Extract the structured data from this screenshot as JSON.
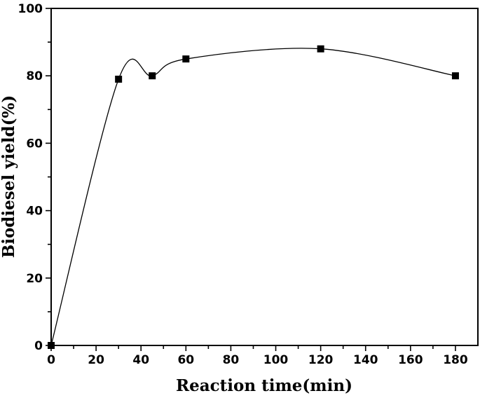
{
  "chart_data": {
    "type": "scatter",
    "xlabel": "Reaction time(min)",
    "ylabel": "Biodiesel yield(%)",
    "xlim": [
      0,
      190
    ],
    "ylim": [
      0,
      100
    ],
    "xticks": [
      0,
      20,
      40,
      60,
      80,
      100,
      120,
      140,
      160,
      180
    ],
    "yticks": [
      0,
      20,
      40,
      60,
      80,
      100
    ],
    "series": [
      {
        "marker": "square",
        "color": "#000000",
        "line": "smooth",
        "x": [
          0,
          30,
          45,
          60,
          120,
          180
        ],
        "y": [
          0,
          79,
          80,
          85,
          88,
          80
        ]
      }
    ],
    "grid": false,
    "legend": "none"
  }
}
